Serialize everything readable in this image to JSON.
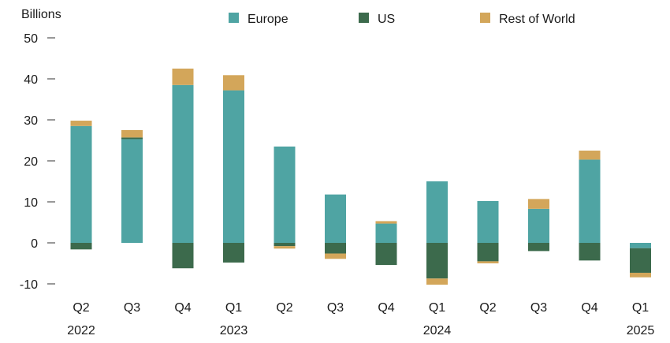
{
  "chart_data": {
    "type": "bar",
    "stacked": true,
    "ylabel": "Billions",
    "ylim": [
      -10,
      50
    ],
    "yticks": [
      50,
      40,
      30,
      20,
      10,
      0,
      -10
    ],
    "grid": false,
    "legend_position": "top",
    "categories": [
      "Q2",
      "Q3",
      "Q4",
      "Q1",
      "Q2",
      "Q3",
      "Q4",
      "Q1",
      "Q2",
      "Q3",
      "Q4",
      "Q1"
    ],
    "years": [
      {
        "label": "2022",
        "index": 0
      },
      {
        "label": "2023",
        "index": 3
      },
      {
        "label": "2024",
        "index": 7
      },
      {
        "label": "2025",
        "index": 11
      }
    ],
    "series": [
      {
        "name": "Europe",
        "color": "#4fa4a3",
        "values": [
          28.5,
          25.3,
          38.5,
          37.2,
          23.5,
          11.8,
          4.7,
          15.0,
          10.2,
          8.3,
          20.3,
          -1.3
        ]
      },
      {
        "name": "US",
        "color": "#3c6a4c",
        "values": [
          -1.6,
          0.4,
          -6.2,
          -4.8,
          -0.8,
          -2.6,
          -5.4,
          -8.7,
          -4.5,
          -2.0,
          -4.3,
          -6.0
        ]
      },
      {
        "name": "Rest of World",
        "color": "#d3a65a",
        "values": [
          1.3,
          1.8,
          4.0,
          3.7,
          -0.6,
          -1.3,
          0.6,
          -1.5,
          -0.5,
          2.4,
          2.2,
          -1.1
        ]
      }
    ]
  }
}
